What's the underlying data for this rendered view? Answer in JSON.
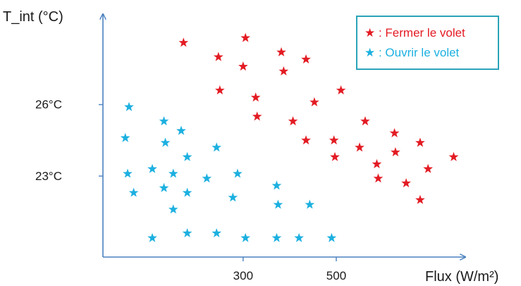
{
  "chart_data": {
    "type": "scatter",
    "title": "",
    "xlabel": "Flux (W/m²)",
    "ylabel": "T_int (°C)",
    "x_ticks": [
      {
        "value": 300,
        "label": "300"
      },
      {
        "value": 500,
        "label": "500"
      }
    ],
    "y_ticks": [
      {
        "value": 23,
        "label": "23°C"
      },
      {
        "value": 26,
        "label": "26°C"
      }
    ],
    "xlim": [
      -1,
      777
    ],
    "ylim": [
      19.6,
      29.8
    ],
    "grid": false,
    "legend_position": "top-right",
    "series": [
      {
        "name": "★ : Fermer le volet",
        "color": "#e31b23",
        "marker": "star",
        "points": [
          [
            172,
            28.6
          ],
          [
            247,
            28.0
          ],
          [
            250,
            26.6
          ],
          [
            305,
            28.8
          ],
          [
            300,
            27.6
          ],
          [
            327,
            26.3
          ],
          [
            330,
            25.5
          ],
          [
            382,
            28.2
          ],
          [
            387,
            27.4
          ],
          [
            407,
            25.3
          ],
          [
            435,
            27.9
          ],
          [
            435,
            24.5
          ],
          [
            453,
            26.1
          ],
          [
            495,
            24.5
          ],
          [
            497,
            23.8
          ],
          [
            510,
            26.6
          ],
          [
            550,
            24.2
          ],
          [
            562,
            25.3
          ],
          [
            587,
            23.5
          ],
          [
            590,
            22.9
          ],
          [
            625,
            24.8
          ],
          [
            627,
            24.0
          ],
          [
            650,
            22.7
          ],
          [
            680,
            24.4
          ],
          [
            680,
            22.0
          ],
          [
            697,
            23.3
          ],
          [
            752,
            23.8
          ]
        ]
      },
      {
        "name": "★ : Ouvrir le volet",
        "color": "#1cb0e0",
        "marker": "star",
        "points": [
          [
            55,
            25.9
          ],
          [
            47,
            24.6
          ],
          [
            52,
            23.1
          ],
          [
            65,
            22.3
          ],
          [
            105,
            23.3
          ],
          [
            105,
            20.4
          ],
          [
            130,
            25.3
          ],
          [
            133,
            24.4
          ],
          [
            130,
            22.5
          ],
          [
            150,
            23.1
          ],
          [
            150,
            21.6
          ],
          [
            167,
            24.9
          ],
          [
            180,
            23.8
          ],
          [
            180,
            22.3
          ],
          [
            180,
            20.6
          ],
          [
            222,
            22.9
          ],
          [
            243,
            24.2
          ],
          [
            243,
            20.6
          ],
          [
            278,
            22.1
          ],
          [
            288,
            23.1
          ],
          [
            305,
            20.4
          ],
          [
            372,
            22.6
          ],
          [
            375,
            21.8
          ],
          [
            372,
            20.4
          ],
          [
            420,
            20.4
          ],
          [
            443,
            21.8
          ],
          [
            490,
            20.4
          ]
        ]
      }
    ]
  }
}
